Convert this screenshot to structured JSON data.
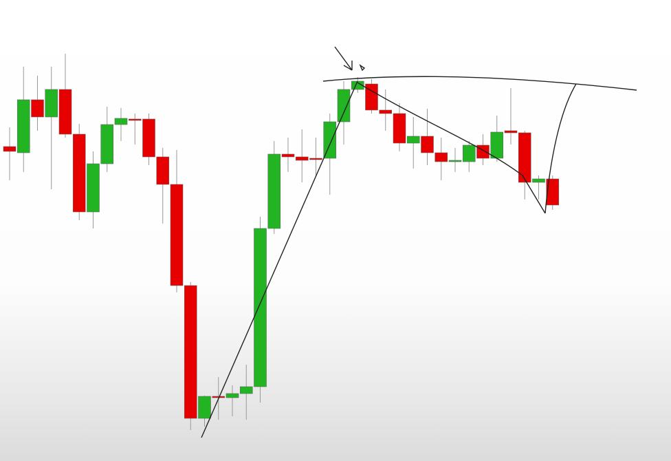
{
  "chart_data": {
    "type": "candlestick",
    "open": [
      457,
      448,
      525,
      500,
      540,
      475,
      362,
      432,
      489,
      497,
      497,
      442,
      402,
      255,
      62,
      94,
      92,
      98,
      108,
      338,
      446,
      442,
      440,
      440,
      493,
      540,
      548,
      510,
      505,
      462,
      472,
      448,
      436,
      435,
      459,
      440,
      480,
      477,
      405,
      410
    ],
    "high": [
      485,
      573,
      560,
      573,
      592,
      490,
      450,
      515,
      513,
      505,
      505,
      455,
      452,
      260,
      95,
      122,
      110,
      140,
      355,
      465,
      470,
      482,
      470,
      505,
      552,
      558,
      555,
      540,
      520,
      500,
      512,
      470,
      455,
      465,
      475,
      502,
      542,
      480,
      415,
      415
    ],
    "low": [
      408,
      420,
      480,
      395,
      470,
      350,
      338,
      420,
      465,
      460,
      430,
      345,
      245,
      45,
      50,
      60,
      65,
      60,
      85,
      330,
      420,
      405,
      415,
      387,
      460,
      535,
      505,
      480,
      450,
      425,
      430,
      408,
      420,
      420,
      430,
      435,
      460,
      380,
      380,
      365
    ],
    "close": [
      450,
      525,
      500,
      540,
      475,
      362,
      432,
      489,
      498,
      495,
      442,
      402,
      255,
      62,
      94,
      92,
      98,
      108,
      338,
      446,
      442,
      437,
      438,
      493,
      540,
      552,
      510,
      505,
      462,
      472,
      448,
      435,
      437,
      459,
      440,
      478,
      477,
      405,
      410,
      372
    ],
    "up_color": "#22b422",
    "down_color": "#e60000",
    "ylim": [
      0,
      670
    ]
  }
}
